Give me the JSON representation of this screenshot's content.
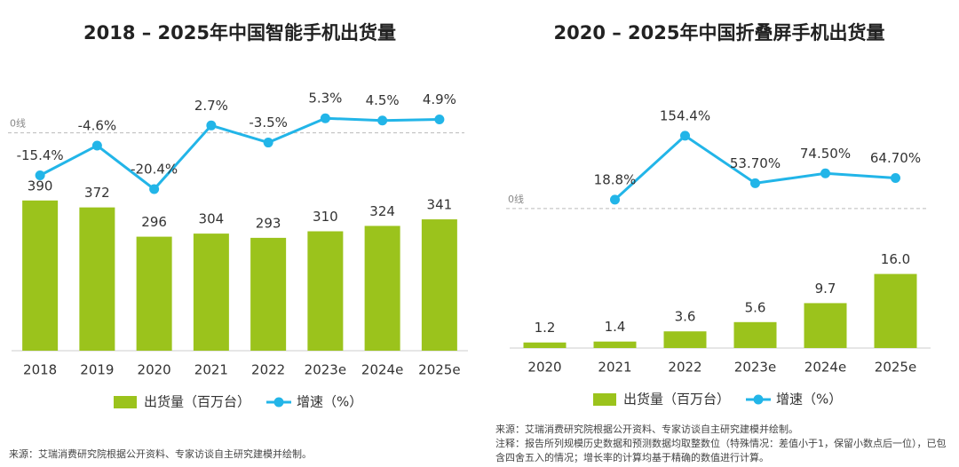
{
  "chart_data": [
    {
      "type": "combo",
      "title": "2018 – 2025年中国智能手机出货量",
      "categories": [
        "2018",
        "2019",
        "2020",
        "2021",
        "2022",
        "2023e",
        "2024e",
        "2025e"
      ],
      "series": [
        {
          "type": "bar",
          "name": "出货量（百万台）",
          "color": "#9bc31c",
          "values": [
            390,
            372,
            296,
            304,
            293,
            310,
            324,
            341
          ]
        },
        {
          "type": "line",
          "axis": "y2",
          "name": "增速（%）",
          "color": "#22b5e8",
          "values": [
            -15.4,
            -4.6,
            -20.4,
            2.7,
            -3.5,
            5.3,
            4.5,
            4.9
          ],
          "value_labels": [
            "-15.4%",
            "-4.6%",
            "-20.4%",
            "2.7%",
            "-3.5%",
            "5.3%",
            "4.5%",
            "4.9%"
          ]
        }
      ],
      "ylim": [
        0,
        680
      ],
      "y2lim": [
        -79,
        16
      ],
      "y2ticks": [
        {
          "value": 0,
          "label": "0线"
        }
      ],
      "legend": "bottom",
      "notes": [
        "来源：艾瑞消费研究院根据公开资料、专家访谈自主研究建模并绘制。"
      ]
    },
    {
      "type": "combo",
      "title": "2020 – 2025年中国折叠屏手机出货量",
      "categories": [
        "2020",
        "2021",
        "2022",
        "2023e",
        "2024e",
        "2025e"
      ],
      "series": [
        {
          "type": "bar",
          "name": "出货量（百万台）",
          "color": "#9bc31c",
          "values": [
            1.2,
            1.4,
            3.6,
            5.6,
            9.7,
            16.0
          ],
          "value_labels": [
            "1.2",
            "1.4",
            "3.6",
            "5.6",
            "9.7",
            "16.0"
          ]
        },
        {
          "type": "line",
          "axis": "y2",
          "name": "增速（%）",
          "color": "#22b5e8",
          "values": [
            null,
            18.8,
            154.4,
            53.7,
            74.5,
            64.7
          ],
          "value_labels": [
            null,
            "18.8%",
            "154.4%",
            "53.70%",
            "74.50%",
            "64.70%"
          ]
        }
      ],
      "ylim": [
        0,
        56
      ],
      "y2lim": [
        -296,
        254
      ],
      "y2ticks": [
        {
          "value": 0,
          "label": "0线"
        }
      ],
      "legend": "bottom",
      "notes": [
        "来源：艾瑞消费研究院根据公开资料、专家访谈自主研究建模并绘制。",
        "注释：报告所列规模历史数据和预测数据均取整数位（特殊情况：差值小于1，保留小数点后一位），已包含四舍五入的情况；增长率的计算均基于精确的数值进行计算。"
      ]
    }
  ]
}
